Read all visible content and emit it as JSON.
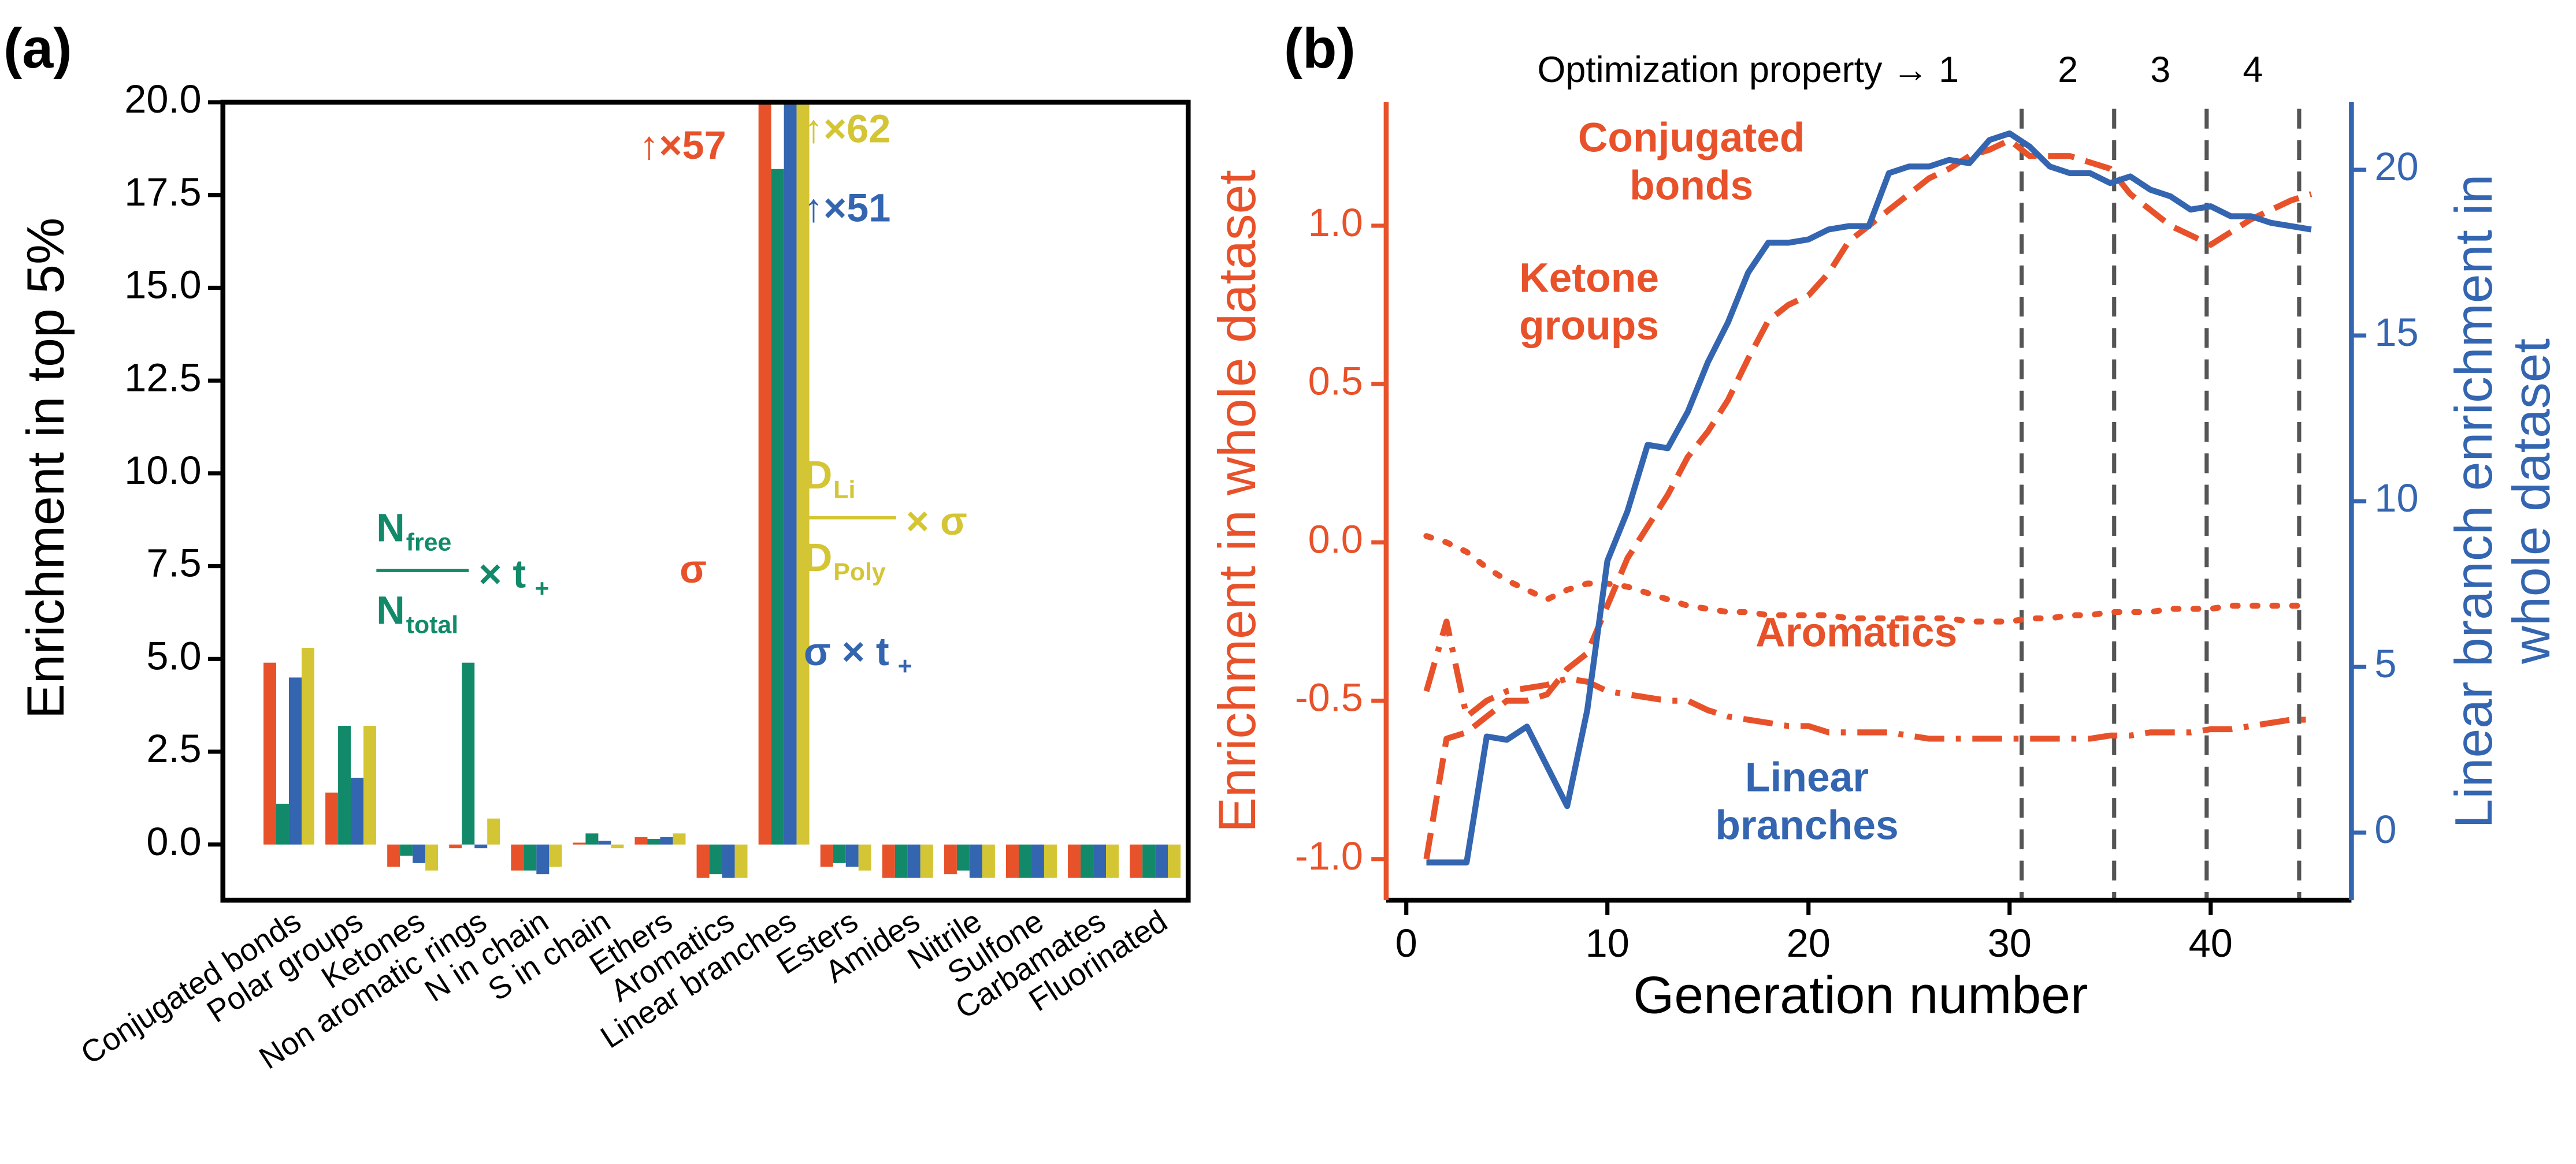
{
  "chart_data": [
    {
      "type": "bar",
      "panel": "(a)",
      "ylabel": "Enrichment in top 5%",
      "categories": [
        "Conjugated bonds",
        "Polar groups",
        "Ketones",
        "Non aromatic rings",
        "N in chain",
        "S in chain",
        "Ethers",
        "Aromatics",
        "Linear branches",
        "Esters",
        "Amides",
        "Nitrile",
        "Sulfone",
        "Carbamates",
        "Fluorinated"
      ],
      "ylim": [
        -1.5,
        20
      ],
      "yticks": [
        {
          "value": 0,
          "label": "0.0"
        },
        2.5,
        {
          "value": 5,
          "label": "5.0"
        },
        7.5,
        {
          "value": 10,
          "label": "10.0"
        },
        12.5,
        {
          "value": 15,
          "label": "15.0"
        },
        17.5,
        {
          "value": 20,
          "label": "20.0"
        }
      ],
      "series": [
        {
          "name": {
            "text": "σ"
          },
          "color": "#e8522a",
          "values": [
            4.9,
            1.4,
            -0.6,
            -0.1,
            -0.7,
            0.05,
            0.2,
            -0.9,
            57,
            -0.6,
            -0.9,
            -0.8,
            -0.9,
            -0.9,
            -0.9
          ],
          "value_labels": [
            null,
            null,
            null,
            null,
            null,
            null,
            null,
            null,
            "↑×57",
            null,
            null,
            null,
            null,
            null,
            null
          ]
        },
        {
          "name": {
            "numerator": "N",
            "numerator_sub": "free",
            "denominator": "N",
            "denominator_sub": "total",
            "factor": "× t",
            "factor_sub": "+"
          },
          "color": "#128a6a",
          "values": [
            1.1,
            3.2,
            -0.3,
            4.9,
            -0.7,
            0.3,
            0.15,
            -0.8,
            18.2,
            -0.5,
            -0.9,
            -0.7,
            -0.9,
            -0.9,
            -0.9
          ]
        },
        {
          "name": {
            "text": "σ × t",
            "sub": "+"
          },
          "color": "#3465b0",
          "values": [
            4.5,
            1.8,
            -0.5,
            -0.1,
            -0.8,
            0.1,
            0.2,
            -0.9,
            51,
            -0.6,
            -0.9,
            -0.9,
            -0.9,
            -0.9,
            -0.9
          ],
          "value_labels": [
            null,
            null,
            null,
            null,
            null,
            null,
            null,
            null,
            "↑×51",
            null,
            null,
            null,
            null,
            null,
            null
          ]
        },
        {
          "name": {
            "numerator": "D",
            "numerator_sub": "Li",
            "denominator": "D",
            "denominator_sub": "Poly",
            "factor": "× σ"
          },
          "color": "#d4c534",
          "values": [
            5.3,
            3.2,
            -0.7,
            0.7,
            -0.6,
            -0.1,
            0.3,
            -0.9,
            62,
            -0.7,
            -0.9,
            -0.9,
            -0.9,
            -0.9,
            -0.9
          ],
          "value_labels": [
            null,
            null,
            null,
            null,
            null,
            null,
            null,
            null,
            "↑×62",
            null,
            null,
            null,
            null,
            null,
            null
          ]
        }
      ]
    },
    {
      "type": "line",
      "panel": "(b)",
      "xlabel": "Generation number",
      "ylabel": "Enrichment in whole dataset",
      "y2label": "Linear branch enrichment in whole dataset",
      "xlim": [
        -1,
        47
      ],
      "xticks": [
        0,
        10,
        20,
        30,
        40
      ],
      "ylim": [
        -1.13,
        1.39
      ],
      "yticks": [
        {
          "value": -1,
          "label": "-1.0"
        },
        -0.5,
        {
          "value": 0,
          "label": "0.0"
        },
        0.5,
        {
          "value": 1,
          "label": "1.0"
        }
      ],
      "y2lim": [
        -2.04,
        22.04
      ],
      "y2ticks": [
        0,
        5,
        10,
        15,
        20
      ],
      "phase_labels": [
        "Optimization property → 1",
        "2",
        "3",
        "4"
      ],
      "phase_boundaries": [
        30.6,
        35.2,
        39.8,
        44.4
      ],
      "x": [
        1,
        2,
        3,
        4,
        5,
        6,
        7,
        8,
        9,
        10,
        11,
        12,
        13,
        14,
        15,
        16,
        17,
        18,
        19,
        20,
        21,
        22,
        23,
        24,
        25,
        26,
        27,
        28,
        29,
        30,
        31,
        32,
        33,
        34,
        35,
        36,
        37,
        38,
        39,
        40,
        41,
        42,
        43,
        44,
        45
      ],
      "series": [
        {
          "name": "Conjugated bonds",
          "color": "#e8522a",
          "dash": "dashed",
          "values": [
            -1.0,
            -0.62,
            -0.6,
            -0.55,
            -0.5,
            -0.5,
            -0.48,
            -0.4,
            -0.35,
            -0.2,
            -0.05,
            0.05,
            0.15,
            0.27,
            0.35,
            0.45,
            0.58,
            0.7,
            0.75,
            0.78,
            0.85,
            0.95,
            1.0,
            1.05,
            1.1,
            1.15,
            1.18,
            1.22,
            1.24,
            1.27,
            1.22,
            1.22,
            1.22,
            1.2,
            1.18,
            1.1,
            1.05,
            1.0,
            0.97,
            0.94,
            0.98,
            1.02,
            1.05,
            1.08,
            1.1
          ]
        },
        {
          "name": "Ketone groups",
          "color": "#e8522a",
          "dash": "dotted",
          "values": [
            0.02,
            0.0,
            -0.03,
            -0.08,
            -0.12,
            -0.15,
            -0.18,
            -0.15,
            -0.13,
            -0.13,
            -0.14,
            -0.16,
            -0.18,
            -0.2,
            -0.21,
            -0.22,
            -0.22,
            -0.23,
            -0.23,
            -0.23,
            -0.23,
            -0.24,
            -0.24,
            -0.24,
            -0.24,
            -0.24,
            -0.24,
            -0.25,
            -0.25,
            -0.25,
            -0.24,
            -0.24,
            -0.23,
            -0.23,
            -0.22,
            -0.22,
            -0.22,
            -0.21,
            -0.21,
            -0.21,
            -0.2,
            -0.2,
            -0.2,
            -0.2,
            -0.2
          ]
        },
        {
          "name": "Aromatics",
          "color": "#e8522a",
          "dash": "dashdot",
          "values": [
            -0.47,
            -0.25,
            -0.55,
            -0.5,
            -0.47,
            -0.46,
            -0.45,
            -0.43,
            -0.44,
            -0.47,
            -0.48,
            -0.49,
            -0.5,
            -0.5,
            -0.53,
            -0.55,
            -0.56,
            -0.57,
            -0.58,
            -0.58,
            -0.6,
            -0.6,
            -0.6,
            -0.6,
            -0.61,
            -0.62,
            -0.62,
            -0.62,
            -0.62,
            -0.62,
            -0.62,
            -0.62,
            -0.62,
            -0.62,
            -0.61,
            -0.61,
            -0.6,
            -0.6,
            -0.6,
            -0.59,
            -0.59,
            -0.58,
            -0.57,
            -0.56,
            -0.56
          ]
        },
        {
          "name": "Linear branches",
          "color": "#3465b0",
          "dash": "solid",
          "axis": "y2",
          "values": [
            -0.9,
            -0.9,
            -0.9,
            2.9,
            2.8,
            3.2,
            2.0,
            0.8,
            3.7,
            8.2,
            9.7,
            11.7,
            11.6,
            12.7,
            14.2,
            15.4,
            16.9,
            17.8,
            17.8,
            17.9,
            18.2,
            18.3,
            18.3,
            19.9,
            20.1,
            20.1,
            20.3,
            20.2,
            20.9,
            21.1,
            20.7,
            20.1,
            19.9,
            19.9,
            19.6,
            19.8,
            19.4,
            19.2,
            18.8,
            18.9,
            18.6,
            18.6,
            18.4,
            18.3,
            18.2
          ]
        }
      ]
    }
  ]
}
